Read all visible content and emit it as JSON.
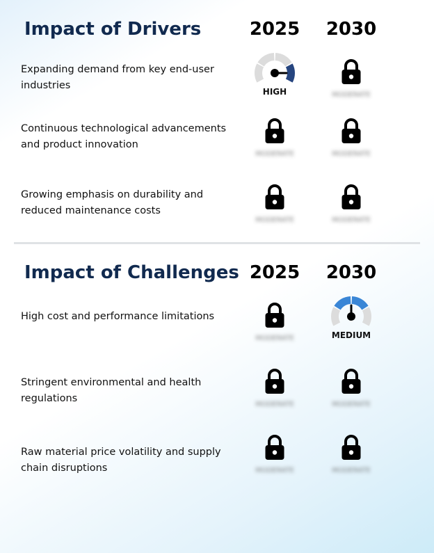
{
  "drivers": {
    "title": "Impact of Drivers",
    "year_a": "2025",
    "year_b": "2030",
    "rows": [
      {
        "label": "Expanding demand from key end-user industries",
        "a": {
          "kind": "gauge",
          "text": "HIGH",
          "level": "high"
        },
        "b": {
          "kind": "lock",
          "text": "MODERATE"
        }
      },
      {
        "label": "Continuous technological advancements and product innovation",
        "a": {
          "kind": "lock",
          "text": "MODERATE"
        },
        "b": {
          "kind": "lock",
          "text": "MODERATE"
        }
      },
      {
        "label": "Growing emphasis on durability and reduced maintenance costs",
        "a": {
          "kind": "lock",
          "text": "MODERATE"
        },
        "b": {
          "kind": "lock",
          "text": "MODERATE"
        }
      }
    ]
  },
  "challenges": {
    "title": "Impact of Challenges",
    "year_a": "2025",
    "year_b": "2030",
    "rows": [
      {
        "label": "High cost and performance limitations",
        "a": {
          "kind": "lock",
          "text": "MODERATE"
        },
        "b": {
          "kind": "gauge",
          "text": "MEDIUM",
          "level": "medium"
        }
      },
      {
        "label": "Stringent environmental and health regulations",
        "a": {
          "kind": "lock",
          "text": "MODERATE"
        },
        "b": {
          "kind": "lock",
          "text": "MODERATE"
        }
      },
      {
        "label": "Raw material price volatility and supply chain disruptions",
        "a": {
          "kind": "lock",
          "text": "MODERATE"
        },
        "b": {
          "kind": "lock",
          "text": "MODERATE"
        }
      }
    ]
  },
  "colors": {
    "title": "#112a4f",
    "gauge_high": "#26457f",
    "gauge_medium": "#3a86d6",
    "gauge_track": "#dcdcdc"
  },
  "icons": {
    "lock": "lock-icon",
    "gauge": "gauge-icon"
  }
}
